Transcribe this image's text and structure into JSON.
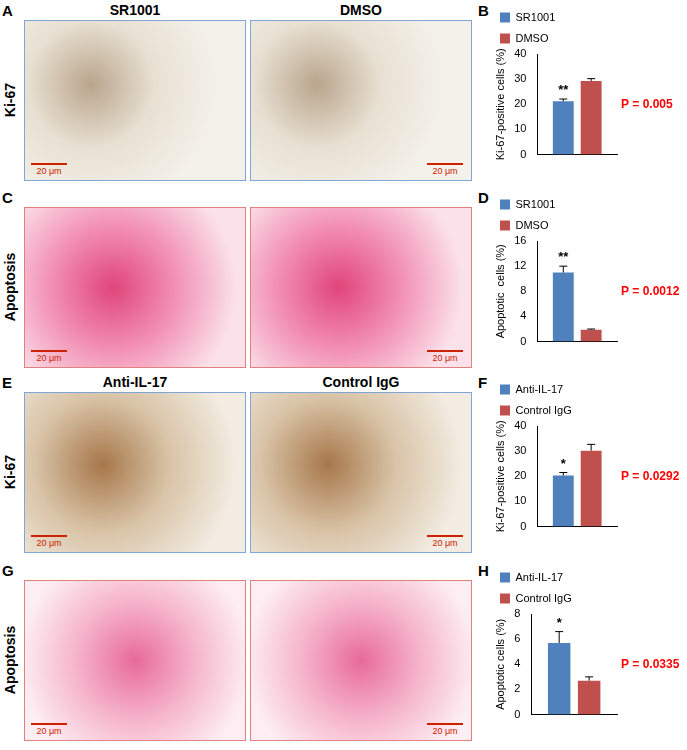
{
  "figure": {
    "scale_bar": "20 μm",
    "rows": [
      {
        "panel": "A",
        "label": "Ki-67",
        "images": [
          "SR1001",
          "DMSO"
        ]
      },
      {
        "panel": "C",
        "label": "Apoptosis",
        "images": [
          null,
          null
        ]
      },
      {
        "panel": "E",
        "label": "Ki-67",
        "images": [
          "Anti-IL-17",
          "Control IgG"
        ]
      },
      {
        "panel": "G",
        "label": "Apoptosis",
        "images": [
          null,
          null
        ]
      }
    ]
  },
  "chart_data": [
    {
      "panel": "B",
      "type": "bar",
      "y_label": "Ki-67-positive cells (%)",
      "categories": [
        null
      ],
      "series": [
        {
          "name": "SR1001",
          "color": "#4f81bd",
          "values": [
            21.2
          ],
          "error": [
            0.9
          ],
          "significance": "**"
        },
        {
          "name": "DMSO",
          "color": "#c0504d",
          "values": [
            29.3
          ],
          "error": [
            0.9
          ]
        }
      ],
      "annotations": [
        "P = 0.005"
      ],
      "ylim": [
        0,
        40
      ],
      "yticks": [
        0,
        10,
        20,
        30,
        40
      ],
      "legend": "top",
      "grid": false
    },
    {
      "panel": "D",
      "type": "bar",
      "y_label": "Apoptotic  cells (%)",
      "categories": [
        null
      ],
      "series": [
        {
          "name": "SR1001",
          "color": "#4f81bd",
          "values": [
            11.0
          ],
          "error": [
            1.0
          ],
          "significance": "**"
        },
        {
          "name": "DMSO",
          "color": "#c0504d",
          "values": [
            1.9
          ],
          "error": [
            0.1
          ]
        }
      ],
      "annotations": [
        "P = 0.0012"
      ],
      "ylim": [
        0,
        16
      ],
      "yticks": [
        0,
        4,
        8,
        12,
        16
      ],
      "legend": "top",
      "grid": false
    },
    {
      "panel": "F",
      "type": "bar",
      "y_label": "Ki-67-positive cells (%)",
      "categories": [
        null
      ],
      "series": [
        {
          "name": "Anti-IL-17",
          "color": "#4f81bd",
          "values": [
            20.3
          ],
          "error": [
            1.2
          ],
          "significance": "*"
        },
        {
          "name": "Control IgG",
          "color": "#c0504d",
          "values": [
            30.2
          ],
          "error": [
            2.5
          ]
        }
      ],
      "annotations": [
        "P = 0.0292"
      ],
      "ylim": [
        0,
        40
      ],
      "yticks": [
        0,
        10,
        20,
        30,
        40
      ],
      "legend": "top",
      "grid": false
    },
    {
      "panel": "H",
      "type": "bar",
      "y_label": "Apoptotic cells (%)",
      "categories": [
        null
      ],
      "series": [
        {
          "name": "Anti-IL-17",
          "color": "#4f81bd",
          "values": [
            5.7
          ],
          "error": [
            0.9
          ],
          "significance": "*"
        },
        {
          "name": "Control IgG",
          "color": "#c0504d",
          "values": [
            2.7
          ],
          "error": [
            0.3
          ]
        }
      ],
      "annotations": [
        "P = 0.0335"
      ],
      "ylim": [
        0,
        8
      ],
      "yticks": [
        0,
        2,
        4,
        6,
        8
      ],
      "legend": "top",
      "grid": false
    }
  ]
}
